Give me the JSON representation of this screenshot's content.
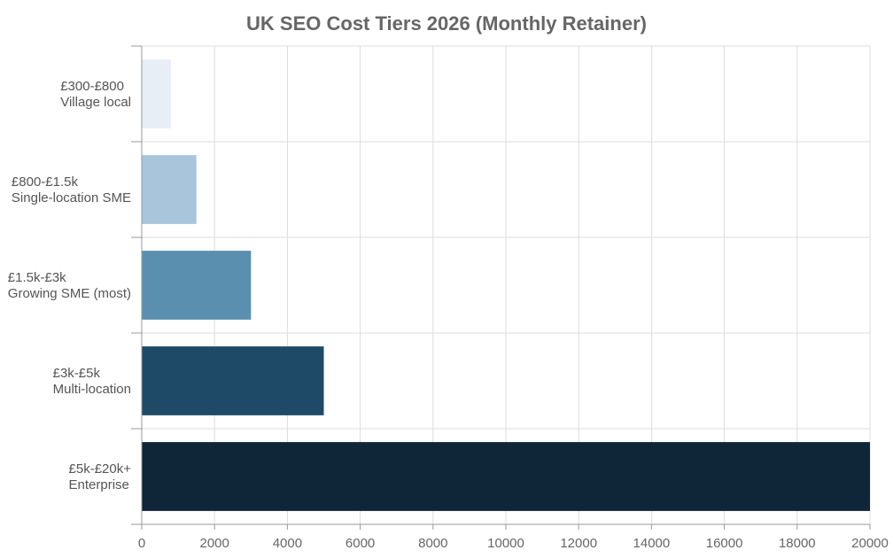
{
  "chart_data": {
    "type": "bar",
    "orientation": "horizontal",
    "title": "UK SEO Cost Tiers 2026 (Monthly Retainer)",
    "xlabel": "",
    "ylabel": "",
    "xlim": [
      0,
      20000
    ],
    "xticks": [
      0,
      2000,
      4000,
      6000,
      8000,
      10000,
      12000,
      14000,
      16000,
      18000,
      20000
    ],
    "grid": true,
    "categories": [
      [
        "£300-£800",
        "Village local"
      ],
      [
        "£800-£1.5k",
        "Single-location SME"
      ],
      [
        "£1.5k-£3k",
        "Growing SME (most)"
      ],
      [
        "£3k-£5k",
        "Multi-location"
      ],
      [
        "£5k-£20k+",
        "Enterprise"
      ]
    ],
    "values": [
      800,
      1500,
      3000,
      5000,
      20000
    ],
    "colors": [
      "#e8eef5",
      "#a9c5dc",
      "#5b8fb0",
      "#1e4a68",
      "#0f2538"
    ]
  }
}
